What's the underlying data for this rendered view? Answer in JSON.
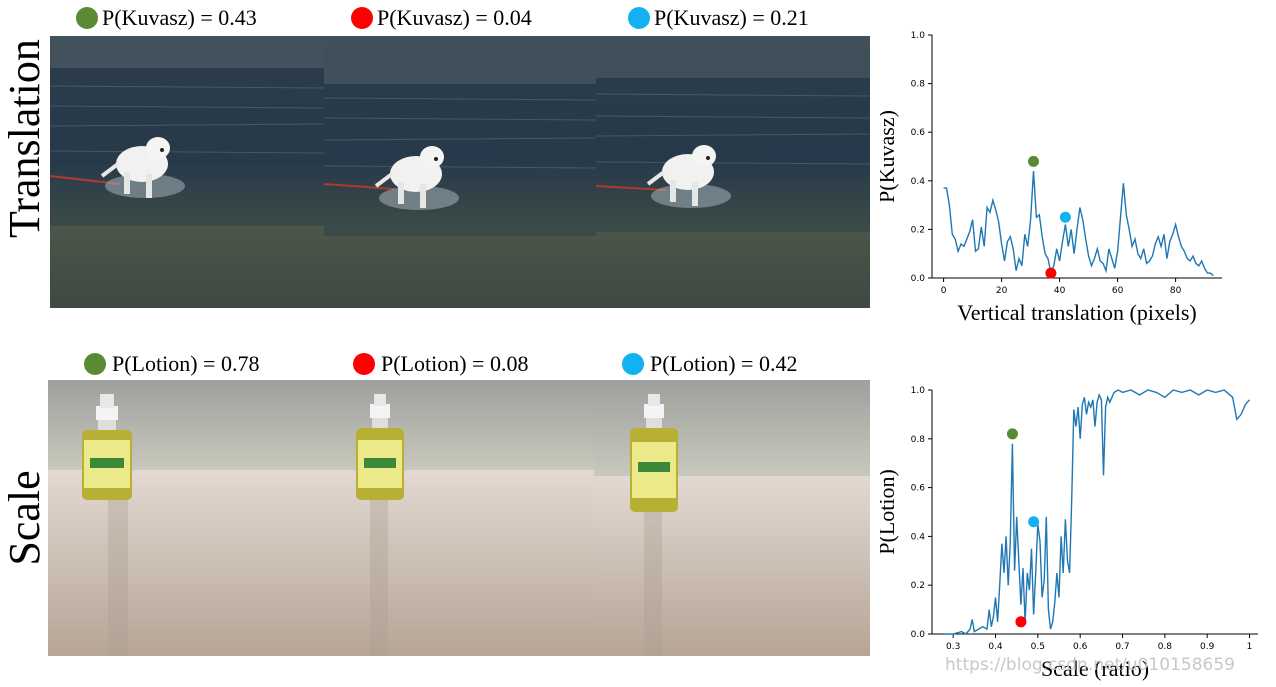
{
  "rows": [
    {
      "label": "Translation",
      "captions": [
        {
          "text": "P(Kuvasz) = 0.43",
          "color": "#5b8a34"
        },
        {
          "text": "P(Kuvasz) = 0.04",
          "color": "#ff0000"
        },
        {
          "text": "P(Kuvasz) = 0.21",
          "color": "#12b2f0"
        }
      ]
    },
    {
      "label": "Scale",
      "captions": [
        {
          "text": "P(Lotion) = 0.78",
          "color": "#5b8a34"
        },
        {
          "text": "P(Lotion) = 0.08",
          "color": "#ff0000"
        },
        {
          "text": "P(Lotion) = 0.42",
          "color": "#12b2f0"
        }
      ]
    }
  ],
  "chart_data": [
    {
      "type": "line",
      "xlabel": "Vertical translation (pixels)",
      "ylabel": "P(Kuvasz)",
      "xlim": [
        -4,
        96
      ],
      "ylim": [
        0,
        1.0
      ],
      "xticks": [
        0,
        20,
        40,
        60,
        80
      ],
      "yticks": [
        0.0,
        0.2,
        0.4,
        0.6,
        0.8,
        1.0
      ],
      "line_color": "#1f77b4",
      "series": [
        {
          "x": [
            0,
            1,
            2,
            3,
            4,
            5,
            6,
            7,
            8,
            9,
            10,
            11,
            12,
            13,
            14,
            15,
            16,
            17,
            18,
            19,
            20,
            21,
            22,
            23,
            24,
            25,
            26,
            27,
            28,
            29,
            30,
            31,
            32,
            33,
            34,
            35,
            36,
            37,
            38,
            39,
            40,
            41,
            42,
            43,
            44,
            45,
            46,
            47,
            48,
            49,
            50,
            51,
            52,
            53,
            54,
            55,
            56,
            57,
            58,
            59,
            60,
            61,
            62,
            63,
            64,
            65,
            66,
            67,
            68,
            69,
            70,
            71,
            72,
            73,
            74,
            75,
            76,
            77,
            78,
            79,
            80,
            81,
            82,
            83,
            84,
            85,
            86,
            87,
            88,
            89,
            90,
            91,
            92,
            93
          ],
          "y": [
            0.37,
            0.37,
            0.3,
            0.18,
            0.16,
            0.11,
            0.14,
            0.13,
            0.16,
            0.19,
            0.24,
            0.11,
            0.12,
            0.21,
            0.13,
            0.29,
            0.27,
            0.32,
            0.28,
            0.23,
            0.14,
            0.07,
            0.15,
            0.17,
            0.12,
            0.03,
            0.08,
            0.05,
            0.18,
            0.13,
            0.24,
            0.44,
            0.25,
            0.26,
            0.17,
            0.1,
            0.08,
            0.02,
            0.05,
            0.12,
            0.07,
            0.15,
            0.22,
            0.13,
            0.2,
            0.1,
            0.2,
            0.29,
            0.24,
            0.16,
            0.09,
            0.05,
            0.08,
            0.12,
            0.07,
            0.06,
            0.03,
            0.12,
            0.08,
            0.04,
            0.11,
            0.25,
            0.39,
            0.26,
            0.2,
            0.13,
            0.16,
            0.1,
            0.08,
            0.12,
            0.06,
            0.07,
            0.09,
            0.14,
            0.17,
            0.13,
            0.18,
            0.08,
            0.15,
            0.18,
            0.22,
            0.17,
            0.13,
            0.11,
            0.08,
            0.07,
            0.09,
            0.06,
            0.05,
            0.07,
            0.04,
            0.02,
            0.02,
            0.01
          ]
        }
      ],
      "markers": [
        {
          "x": 31,
          "y": 0.48,
          "color": "#5b8a34"
        },
        {
          "x": 37,
          "y": 0.02,
          "color": "#ff0000"
        },
        {
          "x": 42,
          "y": 0.25,
          "color": "#12b2f0"
        }
      ]
    },
    {
      "type": "line",
      "xlabel": "Scale (ratio)",
      "ylabel": "P(Lotion)",
      "xlim": [
        0.25,
        1.02
      ],
      "ylim": [
        0,
        1.0
      ],
      "xticks": [
        0.3,
        0.4,
        0.5,
        0.6,
        0.7,
        0.8,
        0.9,
        1.0
      ],
      "yticks": [
        0.0,
        0.2,
        0.4,
        0.6,
        0.8,
        1.0
      ],
      "line_color": "#1f77b4",
      "series": [
        {
          "x": [
            0.28,
            0.3,
            0.32,
            0.33,
            0.34,
            0.345,
            0.35,
            0.36,
            0.37,
            0.38,
            0.385,
            0.39,
            0.395,
            0.4,
            0.405,
            0.41,
            0.415,
            0.42,
            0.425,
            0.43,
            0.435,
            0.44,
            0.445,
            0.45,
            0.455,
            0.46,
            0.465,
            0.47,
            0.475,
            0.48,
            0.485,
            0.49,
            0.495,
            0.5,
            0.505,
            0.51,
            0.515,
            0.52,
            0.525,
            0.53,
            0.535,
            0.54,
            0.545,
            0.55,
            0.555,
            0.56,
            0.565,
            0.57,
            0.575,
            0.58,
            0.585,
            0.59,
            0.595,
            0.6,
            0.605,
            0.61,
            0.615,
            0.62,
            0.625,
            0.63,
            0.635,
            0.64,
            0.645,
            0.65,
            0.655,
            0.66,
            0.665,
            0.67,
            0.68,
            0.69,
            0.7,
            0.72,
            0.74,
            0.76,
            0.78,
            0.8,
            0.82,
            0.84,
            0.86,
            0.88,
            0.9,
            0.92,
            0.94,
            0.96,
            0.97,
            0.98,
            0.99,
            1.0
          ],
          "y": [
            0.0,
            0.0,
            0.01,
            0.0,
            0.02,
            0.06,
            0.01,
            0.02,
            0.03,
            0.02,
            0.1,
            0.03,
            0.07,
            0.15,
            0.05,
            0.2,
            0.37,
            0.25,
            0.4,
            0.2,
            0.38,
            0.78,
            0.26,
            0.48,
            0.3,
            0.12,
            0.27,
            0.05,
            0.25,
            0.18,
            0.35,
            0.08,
            0.25,
            0.45,
            0.38,
            0.15,
            0.22,
            0.48,
            0.1,
            0.02,
            0.05,
            0.13,
            0.25,
            0.15,
            0.4,
            0.25,
            0.47,
            0.3,
            0.25,
            0.55,
            0.92,
            0.85,
            0.93,
            0.8,
            0.94,
            0.97,
            0.9,
            0.95,
            0.93,
            0.96,
            0.85,
            0.95,
            0.98,
            0.96,
            0.65,
            0.93,
            0.97,
            0.95,
            0.99,
            1.0,
            0.99,
            1.0,
            0.98,
            1.0,
            0.99,
            0.97,
            1.0,
            0.99,
            1.0,
            0.98,
            1.0,
            0.99,
            1.0,
            0.97,
            0.88,
            0.9,
            0.94,
            0.96
          ]
        }
      ],
      "markers": [
        {
          "x": 0.44,
          "y": 0.82,
          "color": "#5b8a34"
        },
        {
          "x": 0.46,
          "y": 0.05,
          "color": "#ff0000"
        },
        {
          "x": 0.49,
          "y": 0.46,
          "color": "#12b2f0"
        }
      ]
    }
  ],
  "watermark": "https://blog.csdn.net/u010158659"
}
